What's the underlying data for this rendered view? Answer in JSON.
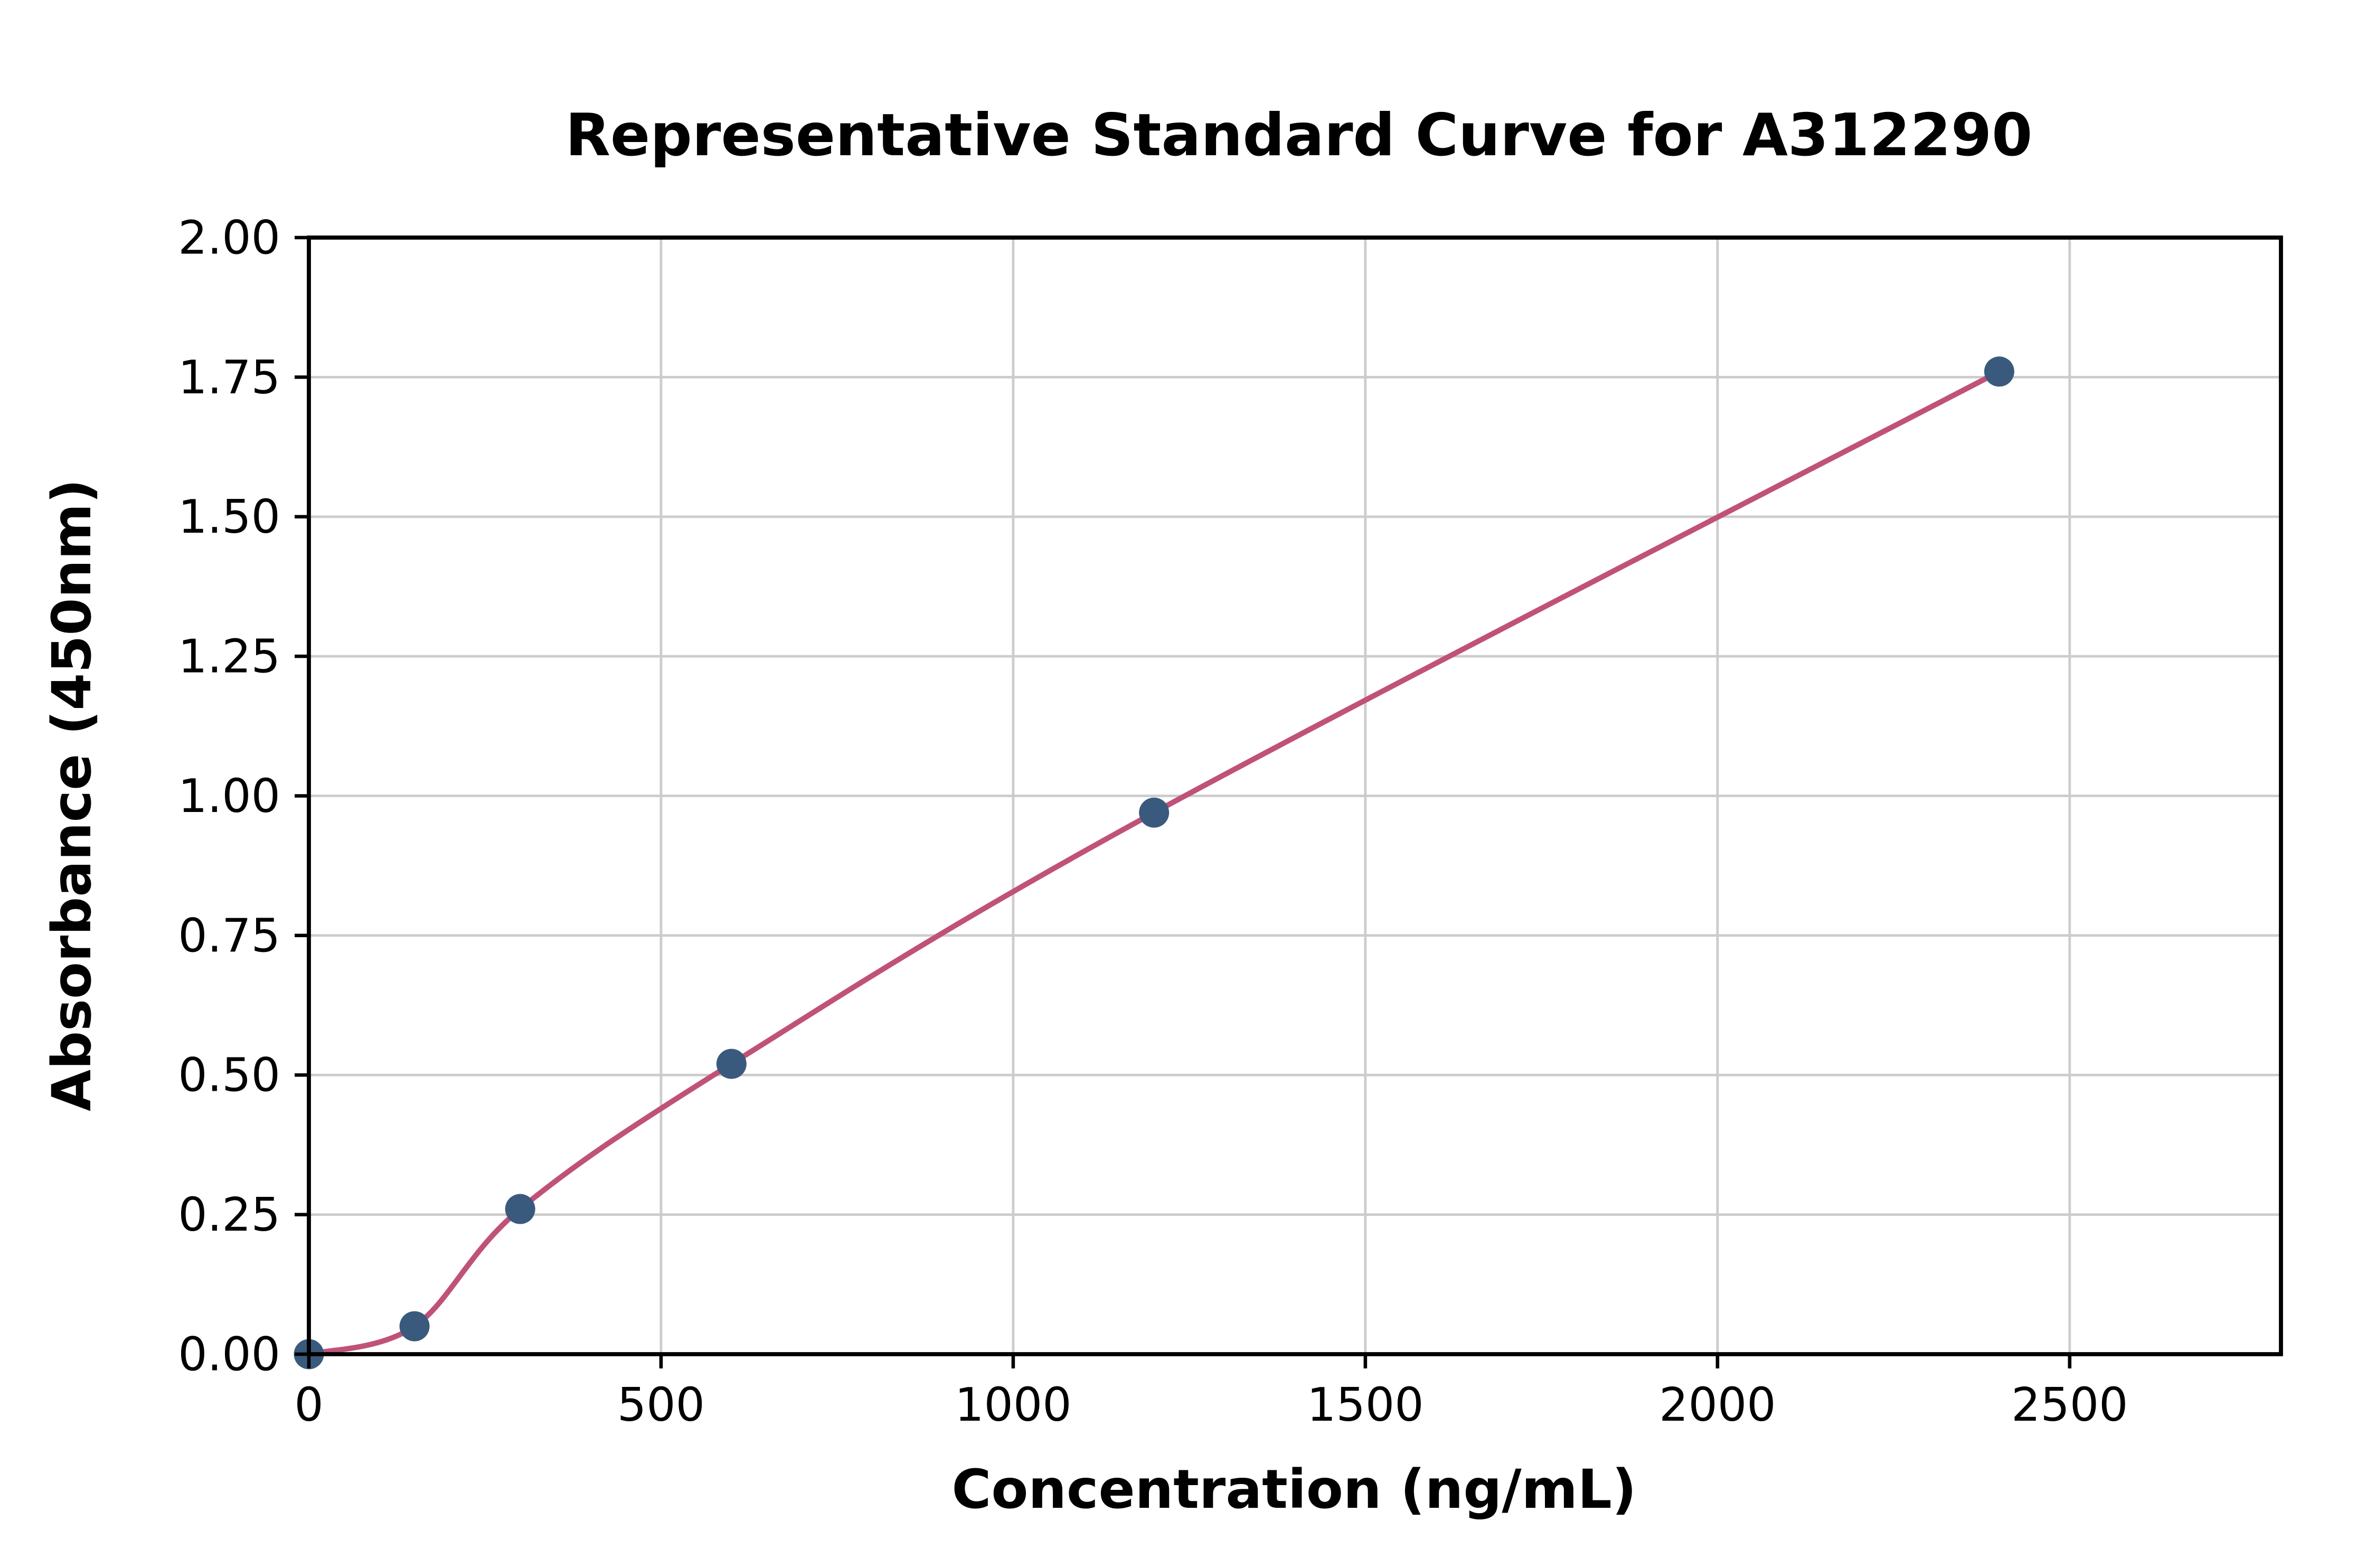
{
  "chart_data": {
    "type": "scatter",
    "title": "Representative Standard Curve for A312290",
    "xlabel": "Concentration (ng/mL)",
    "ylabel": "Absorbance (450nm)",
    "xlim": [
      0,
      2800
    ],
    "ylim": [
      0,
      2.0
    ],
    "x_ticks": [
      0,
      500,
      1000,
      1500,
      2000,
      2500
    ],
    "y_ticks": [
      0.0,
      0.25,
      0.5,
      0.75,
      1.0,
      1.25,
      1.5,
      1.75,
      2.0
    ],
    "grid": true,
    "legend": "none",
    "points": [
      {
        "x": 0,
        "y": 0.0
      },
      {
        "x": 150,
        "y": 0.05
      },
      {
        "x": 300,
        "y": 0.26
      },
      {
        "x": 600,
        "y": 0.52
      },
      {
        "x": 1200,
        "y": 0.97
      },
      {
        "x": 2400,
        "y": 1.76
      }
    ],
    "fit_curve_through_points": true,
    "colors": {
      "point": "#3a5a7d",
      "curve": "#c0527a",
      "grid": "#cccccc",
      "axis": "#000000",
      "background": "#ffffff"
    }
  }
}
